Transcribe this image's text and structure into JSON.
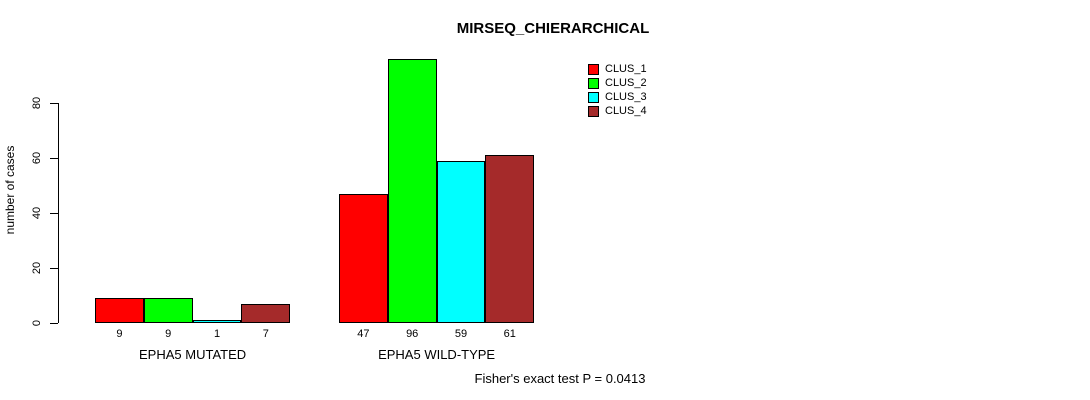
{
  "chart_data": {
    "type": "bar",
    "title": "MIRSEQ_CHIERARCHICAL",
    "ylabel": "number of cases",
    "xlabel": "",
    "categories": [
      "EPHA5 MUTATED",
      "EPHA5 WILD-TYPE"
    ],
    "series": [
      {
        "name": "CLUS_1",
        "color": "#FF0000",
        "values": [
          9,
          47
        ]
      },
      {
        "name": "CLUS_2",
        "color": "#00FF00",
        "values": [
          9,
          96
        ]
      },
      {
        "name": "CLUS_3",
        "color": "#00FFFF",
        "values": [
          1,
          59
        ]
      },
      {
        "name": "CLUS_4",
        "color": "#A52A2A",
        "values": [
          7,
          61
        ]
      }
    ],
    "yticks": [
      0,
      20,
      40,
      60,
      80
    ],
    "ylim": [
      0,
      96
    ],
    "grid": false,
    "legend_position": "top-right",
    "bar_borders": true,
    "annotation": "Fisher's exact test P = 0.0413"
  },
  "colors": {
    "background": "#FFFFFF",
    "axis": "#000000",
    "text": "#000000"
  }
}
